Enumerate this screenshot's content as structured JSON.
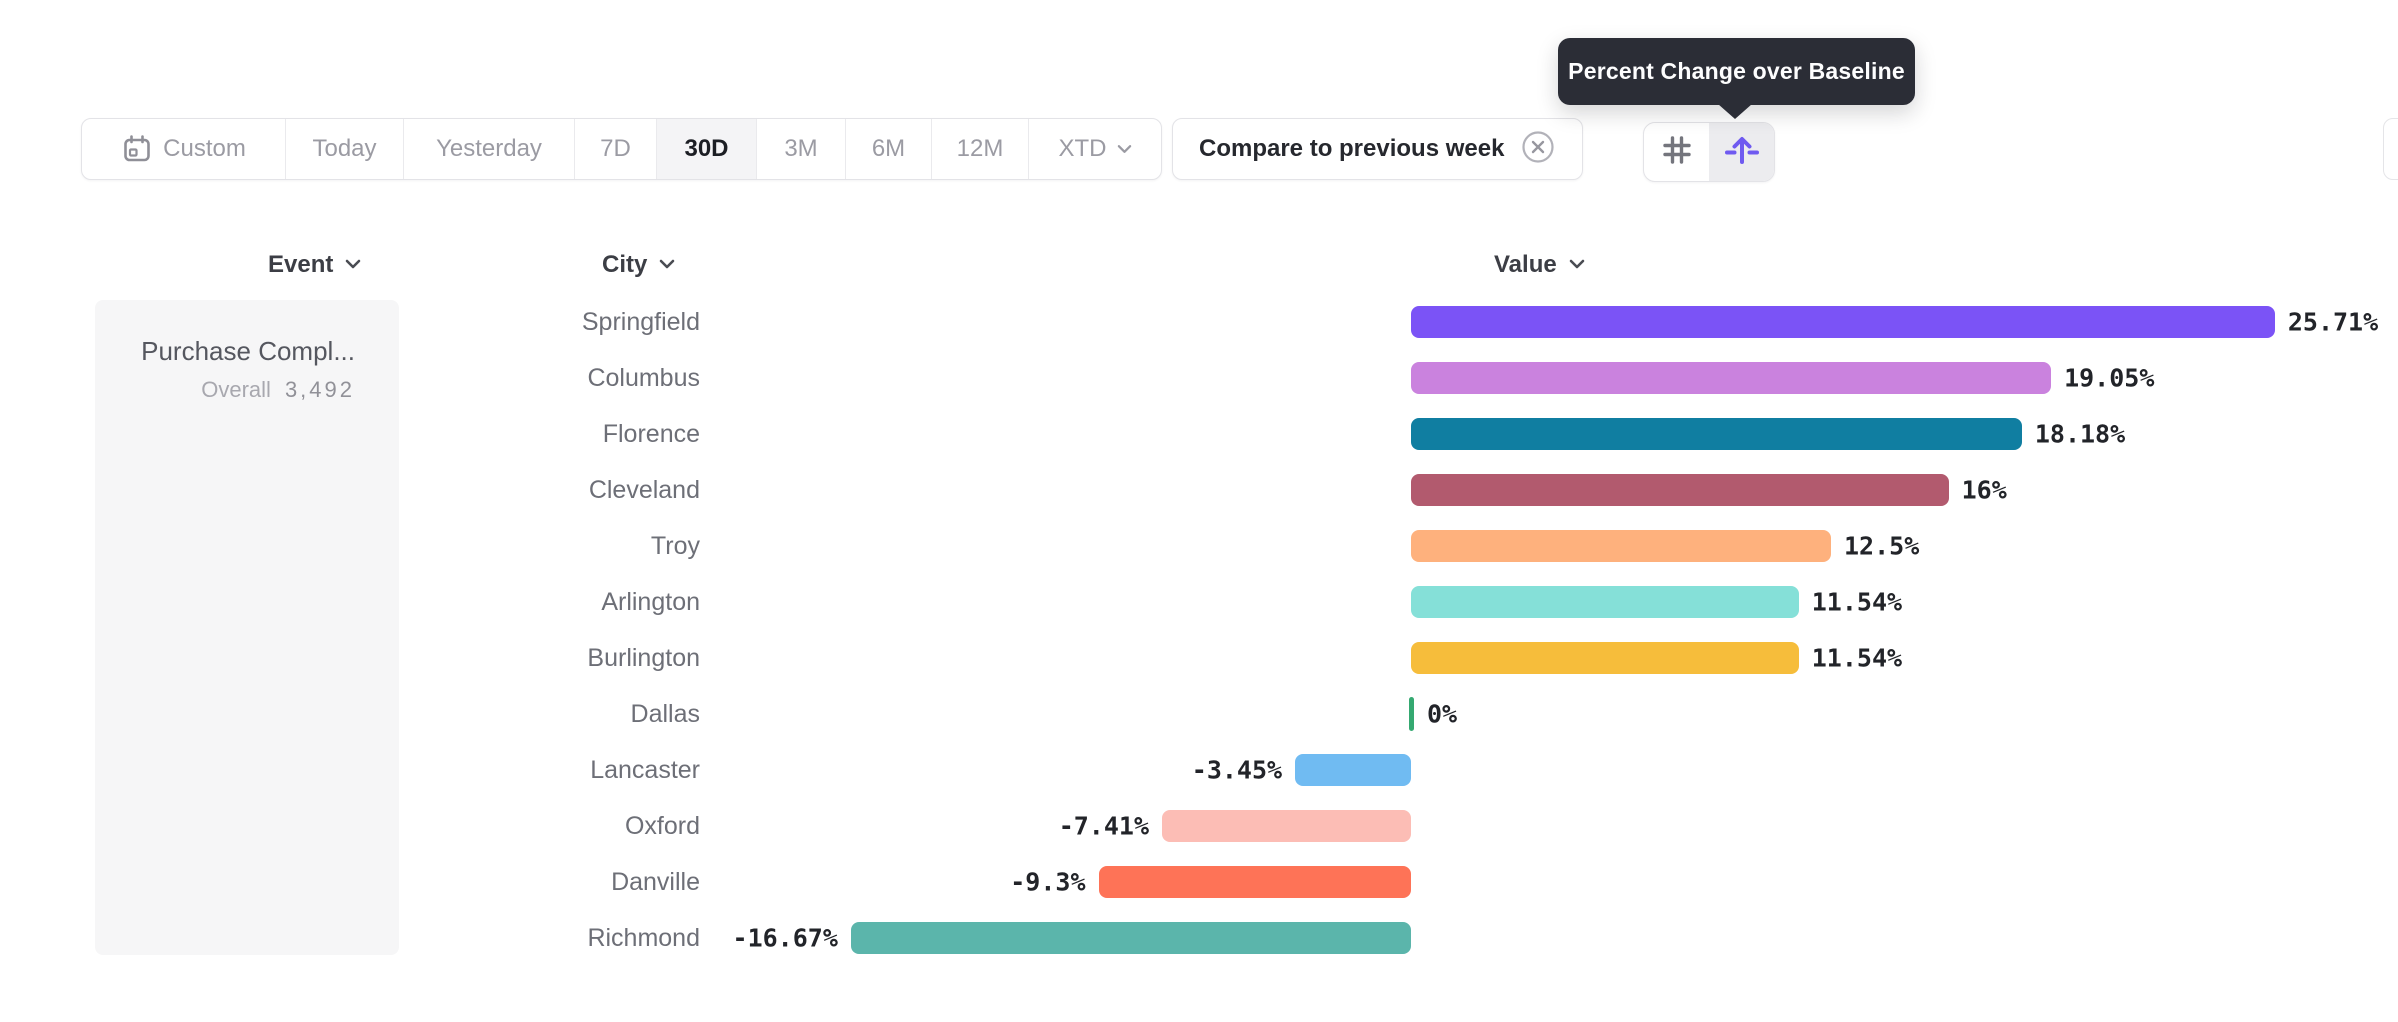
{
  "tooltip": {
    "text": "Percent Change over Baseline"
  },
  "toolbar": {
    "ranges": [
      {
        "label": "Custom",
        "icon": "calendar-icon",
        "selected": false
      },
      {
        "label": "Today",
        "selected": false
      },
      {
        "label": "Yesterday",
        "selected": false
      },
      {
        "label": "7D",
        "selected": false
      },
      {
        "label": "30D",
        "selected": true
      },
      {
        "label": "3M",
        "selected": false
      },
      {
        "label": "6M",
        "selected": false
      },
      {
        "label": "12M",
        "selected": false
      },
      {
        "label": "XTD",
        "chevron": true,
        "selected": false
      }
    ]
  },
  "compare": {
    "label": "Compare to previous week",
    "icon": "x-circle-icon"
  },
  "view_toggle": {
    "buttons": [
      {
        "icon": "grid-icon",
        "selected": false
      },
      {
        "icon": "baseline-arrow-icon",
        "selected": true
      }
    ]
  },
  "columns": [
    {
      "label": "Event"
    },
    {
      "label": "City"
    },
    {
      "label": "Value"
    }
  ],
  "event_card": {
    "title": "Purchase Compl...",
    "metric_label": "Overall",
    "metric_value": "3,492"
  },
  "chart_data": {
    "type": "bar",
    "orientation": "horizontal",
    "title": "Percent Change over Baseline",
    "unit": "%",
    "xlim": [
      -18,
      27
    ],
    "grid": false,
    "categories": [
      "Springfield",
      "Columbus",
      "Florence",
      "Cleveland",
      "Troy",
      "Arlington",
      "Burlington",
      "Dallas",
      "Lancaster",
      "Oxford",
      "Danville",
      "Richmond"
    ],
    "values": [
      25.71,
      19.05,
      18.18,
      16,
      12.5,
      11.54,
      11.54,
      0,
      -3.45,
      -7.41,
      -9.3,
      -16.67
    ],
    "value_labels": [
      "25.71%",
      "19.05%",
      "18.18%",
      "16%",
      "12.5%",
      "11.54%",
      "11.54%",
      "0%",
      "-3.45%",
      "-7.41%",
      "-9.3%",
      "-16.67%"
    ],
    "colors": [
      "#7b53f6",
      "#ca82de",
      "#107ea1",
      "#b25a6e",
      "#feb17d",
      "#85e0d8",
      "#f6bd3b",
      "#35a971",
      "#70bbf2",
      "#fcbdb5",
      "#fe7357",
      "#5bb5ab"
    ],
    "zero_tick_color": "#35a971"
  }
}
